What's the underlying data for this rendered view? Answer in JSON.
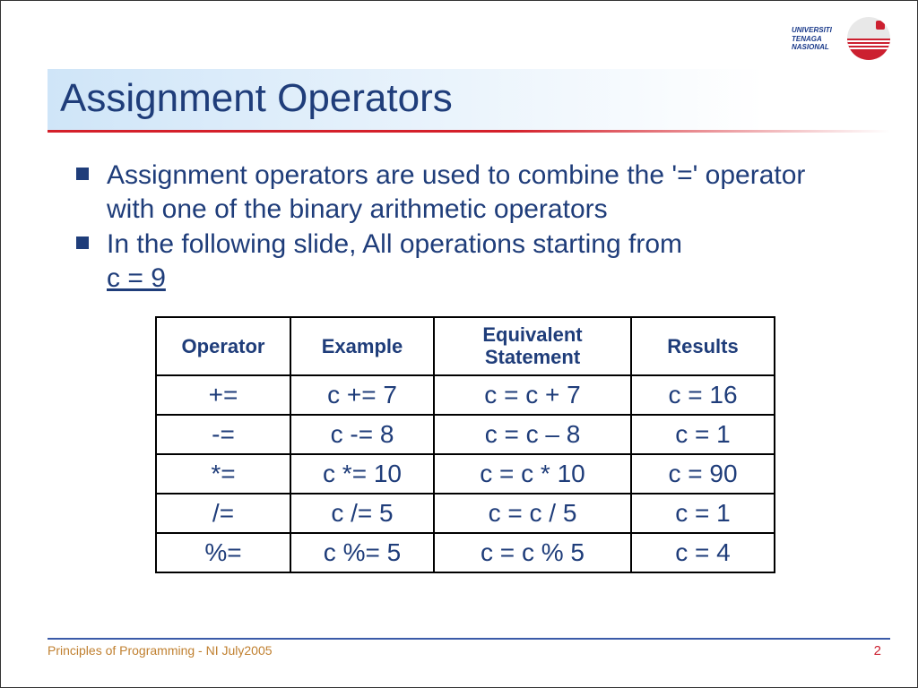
{
  "logo": {
    "line1": "UNIVERSITI",
    "line2": "TENAGA",
    "line3": "NASIONAL"
  },
  "title": "Assignment Operators",
  "bullets": {
    "b1": "Assignment operators are used to combine the '=' operator with one of the binary arithmetic operators",
    "b2_prefix": "In the following slide, All operations starting from ",
    "b2_underlined": "c = 9"
  },
  "table": {
    "headers": {
      "op": "Operator",
      "ex": "Example",
      "eq_l1": "Equivalent",
      "eq_l2": "Statement",
      "res": "Results"
    },
    "rows": [
      {
        "op": "+=",
        "ex": "c += 7",
        "eq": "c = c + 7",
        "res": "c = 16"
      },
      {
        "op": "-=",
        "ex": "c -= 8",
        "eq": "c = c – 8",
        "res": "c = 1"
      },
      {
        "op": "*=",
        "ex": "c *= 10",
        "eq": "c = c * 10",
        "res": "c = 90"
      },
      {
        "op": "/=",
        "ex": "c /= 5",
        "eq": "c = c / 5",
        "res": "c = 1"
      },
      {
        "op": "%=",
        "ex": "c %= 5",
        "eq": "c = c % 5",
        "res": "c = 4"
      }
    ]
  },
  "footer": {
    "left": "Principles of Programming - NI July2005",
    "page": "2"
  },
  "colors": {
    "heading": "#1f3d7a",
    "accent_red": "#cc2030",
    "title_bg_start": "#cfe5f8",
    "footer_text": "#c08030"
  }
}
